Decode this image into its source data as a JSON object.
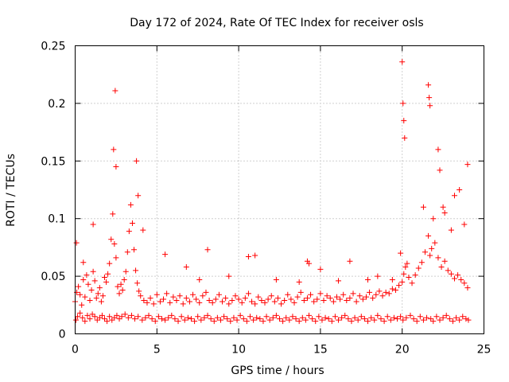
{
  "chart_data": {
    "type": "scatter",
    "title": "Day 172 of 2024, Rate Of TEC Index for receiver osls",
    "xlabel": "GPS time / hours",
    "ylabel": "ROTI / TECUs",
    "xlim": [
      0,
      25
    ],
    "ylim": [
      0,
      0.25
    ],
    "xticks": [
      0,
      5,
      10,
      15,
      20,
      25
    ],
    "xtick_labels": [
      "0",
      "5",
      "10",
      "15",
      "20",
      "25"
    ],
    "yticks": [
      0,
      0.05,
      0.1,
      0.15,
      0.2,
      0.25
    ],
    "ytick_labels": [
      "0",
      "0.05",
      "0.1",
      "0.15",
      "0.2",
      "0.25"
    ],
    "grid": true,
    "marker": "+",
    "series": [
      {
        "name": "ROTI",
        "color": "#ff0000",
        "x": [
          0.0,
          0.1,
          0.2,
          0.3,
          0.4,
          0.5,
          0.6,
          0.7,
          0.8,
          0.9,
          1.0,
          1.1,
          1.2,
          1.3,
          1.4,
          1.5,
          1.6,
          1.7,
          1.8,
          1.9,
          2.0,
          2.1,
          2.2,
          2.3,
          2.4,
          2.5,
          2.6,
          2.7,
          2.8,
          2.9,
          3.0,
          3.1,
          3.2,
          3.3,
          3.4,
          3.5,
          3.6,
          3.7,
          3.8,
          3.9,
          4.0,
          4.2,
          4.4,
          4.6,
          4.8,
          5.0,
          5.2,
          5.4,
          5.6,
          5.8,
          6.0,
          6.2,
          6.4,
          6.6,
          6.8,
          7.0,
          7.2,
          7.4,
          7.6,
          7.8,
          8.0,
          8.2,
          8.4,
          8.6,
          8.8,
          9.0,
          9.2,
          9.4,
          9.6,
          9.8,
          10.0,
          10.2,
          10.4,
          10.6,
          10.8,
          11.0,
          11.2,
          11.4,
          11.6,
          11.8,
          12.0,
          12.2,
          12.4,
          12.6,
          12.8,
          13.0,
          13.2,
          13.4,
          13.6,
          13.8,
          14.0,
          14.2,
          14.4,
          14.6,
          14.8,
          15.0,
          15.2,
          15.4,
          15.6,
          15.8,
          16.0,
          16.2,
          16.4,
          16.6,
          16.8,
          17.0,
          17.2,
          17.4,
          17.6,
          17.8,
          18.0,
          18.2,
          18.4,
          18.6,
          18.8,
          19.0,
          19.2,
          19.4,
          19.6,
          19.8,
          20.0,
          20.1,
          20.2,
          20.3,
          20.4,
          20.6,
          20.8,
          21.0,
          21.2,
          21.4,
          21.6,
          21.7,
          21.8,
          22.0,
          22.2,
          22.4,
          22.6,
          22.8,
          23.0,
          23.2,
          23.4,
          23.6,
          23.8,
          24.0,
          0.05,
          0.15,
          0.3,
          0.45,
          0.6,
          0.75,
          0.9,
          1.05,
          1.2,
          1.35,
          1.5,
          1.65,
          1.8,
          1.95,
          2.1,
          2.25,
          2.4,
          2.55,
          2.7,
          2.85,
          3.05,
          3.25,
          3.45,
          3.65,
          3.85,
          4.1,
          4.3,
          4.5,
          4.7,
          4.9,
          5.1,
          5.3,
          5.5,
          5.7,
          5.9,
          6.1,
          6.3,
          6.5,
          6.7,
          6.9,
          7.1,
          7.3,
          7.5,
          7.7,
          7.9,
          8.1,
          8.3,
          8.5,
          8.7,
          8.9,
          9.1,
          9.3,
          9.5,
          9.7,
          9.9,
          10.1,
          10.3,
          10.5,
          10.7,
          10.9,
          11.1,
          11.3,
          11.5,
          11.7,
          11.9,
          12.1,
          12.3,
          12.5,
          12.7,
          12.9,
          13.1,
          13.3,
          13.5,
          13.7,
          13.9,
          14.1,
          14.3,
          14.5,
          14.7,
          14.9,
          15.1,
          15.3,
          15.5,
          15.7,
          15.9,
          16.1,
          16.3,
          16.5,
          16.7,
          16.9,
          17.1,
          17.3,
          17.5,
          17.7,
          17.9,
          18.1,
          18.3,
          18.5,
          18.7,
          18.9,
          19.1,
          19.3,
          19.5,
          19.7,
          19.9,
          20.05,
          20.25,
          20.5,
          20.7,
          20.9,
          21.1,
          21.3,
          21.5,
          21.75,
          21.9,
          22.1,
          22.3,
          22.5,
          22.7,
          22.9,
          23.1,
          23.3,
          23.5,
          23.7,
          23.9,
          24.05,
          0.08,
          0.5,
          1.1,
          2.35,
          2.45,
          2.5,
          3.75,
          3.85,
          4.15,
          5.5,
          6.8,
          8.1,
          10.6,
          11.0,
          14.2,
          14.3,
          15.0,
          16.8,
          19.9,
          20.0,
          20.05,
          20.1,
          20.15,
          21.6,
          21.65,
          21.7,
          22.2,
          22.3,
          23.0,
          23.5,
          24.0,
          22.5,
          22.6,
          23.2,
          23.8,
          21.3,
          21.9,
          18.5,
          19.4,
          12.3,
          9.4,
          7.6,
          13.7,
          16.1,
          17.9
        ],
        "y": [
          0.028,
          0.036,
          0.041,
          0.034,
          0.025,
          0.047,
          0.032,
          0.051,
          0.043,
          0.029,
          0.038,
          0.054,
          0.046,
          0.031,
          0.035,
          0.04,
          0.028,
          0.033,
          0.049,
          0.045,
          0.052,
          0.061,
          0.082,
          0.104,
          0.078,
          0.066,
          0.041,
          0.035,
          0.043,
          0.038,
          0.047,
          0.054,
          0.071,
          0.089,
          0.112,
          0.096,
          0.073,
          0.055,
          0.044,
          0.037,
          0.033,
          0.029,
          0.027,
          0.031,
          0.026,
          0.034,
          0.028,
          0.03,
          0.035,
          0.027,
          0.032,
          0.029,
          0.033,
          0.026,
          0.031,
          0.028,
          0.034,
          0.03,
          0.027,
          0.033,
          0.036,
          0.029,
          0.027,
          0.03,
          0.034,
          0.028,
          0.031,
          0.026,
          0.029,
          0.033,
          0.03,
          0.027,
          0.031,
          0.035,
          0.028,
          0.026,
          0.032,
          0.029,
          0.027,
          0.03,
          0.033,
          0.028,
          0.031,
          0.026,
          0.029,
          0.034,
          0.03,
          0.027,
          0.032,
          0.036,
          0.029,
          0.031,
          0.034,
          0.028,
          0.03,
          0.035,
          0.029,
          0.033,
          0.031,
          0.028,
          0.032,
          0.03,
          0.034,
          0.029,
          0.031,
          0.035,
          0.028,
          0.033,
          0.03,
          0.032,
          0.036,
          0.031,
          0.034,
          0.037,
          0.033,
          0.036,
          0.035,
          0.039,
          0.038,
          0.042,
          0.045,
          0.052,
          0.058,
          0.061,
          0.049,
          0.044,
          0.051,
          0.057,
          0.062,
          0.071,
          0.085,
          0.068,
          0.074,
          0.079,
          0.066,
          0.058,
          0.063,
          0.055,
          0.052,
          0.048,
          0.051,
          0.047,
          0.044,
          0.04,
          0.012,
          0.015,
          0.018,
          0.014,
          0.011,
          0.016,
          0.013,
          0.017,
          0.015,
          0.012,
          0.014,
          0.016,
          0.013,
          0.011,
          0.015,
          0.012,
          0.014,
          0.016,
          0.013,
          0.015,
          0.017,
          0.014,
          0.016,
          0.013,
          0.015,
          0.012,
          0.014,
          0.016,
          0.013,
          0.011,
          0.015,
          0.013,
          0.012,
          0.014,
          0.016,
          0.013,
          0.011,
          0.015,
          0.012,
          0.014,
          0.013,
          0.011,
          0.015,
          0.012,
          0.014,
          0.016,
          0.013,
          0.011,
          0.014,
          0.012,
          0.015,
          0.013,
          0.011,
          0.014,
          0.012,
          0.016,
          0.013,
          0.011,
          0.015,
          0.012,
          0.014,
          0.013,
          0.011,
          0.015,
          0.012,
          0.014,
          0.016,
          0.013,
          0.011,
          0.014,
          0.012,
          0.015,
          0.013,
          0.011,
          0.014,
          0.012,
          0.016,
          0.013,
          0.011,
          0.015,
          0.012,
          0.014,
          0.013,
          0.011,
          0.015,
          0.012,
          0.014,
          0.016,
          0.013,
          0.011,
          0.014,
          0.012,
          0.015,
          0.013,
          0.011,
          0.014,
          0.012,
          0.016,
          0.013,
          0.011,
          0.015,
          0.012,
          0.014,
          0.013,
          0.015,
          0.012,
          0.014,
          0.016,
          0.013,
          0.011,
          0.015,
          0.012,
          0.014,
          0.013,
          0.011,
          0.015,
          0.012,
          0.014,
          0.016,
          0.013,
          0.011,
          0.014,
          0.012,
          0.015,
          0.013,
          0.012,
          0.079,
          0.062,
          0.095,
          0.16,
          0.211,
          0.145,
          0.15,
          0.12,
          0.09,
          0.069,
          0.058,
          0.073,
          0.067,
          0.068,
          0.063,
          0.061,
          0.056,
          0.063,
          0.07,
          0.236,
          0.2,
          0.185,
          0.17,
          0.216,
          0.205,
          0.198,
          0.16,
          0.142,
          0.09,
          0.125,
          0.147,
          0.11,
          0.105,
          0.12,
          0.095,
          0.11,
          0.1,
          0.05,
          0.047,
          0.047,
          0.05,
          0.047,
          0.045,
          0.046,
          0.047
        ]
      }
    ]
  }
}
